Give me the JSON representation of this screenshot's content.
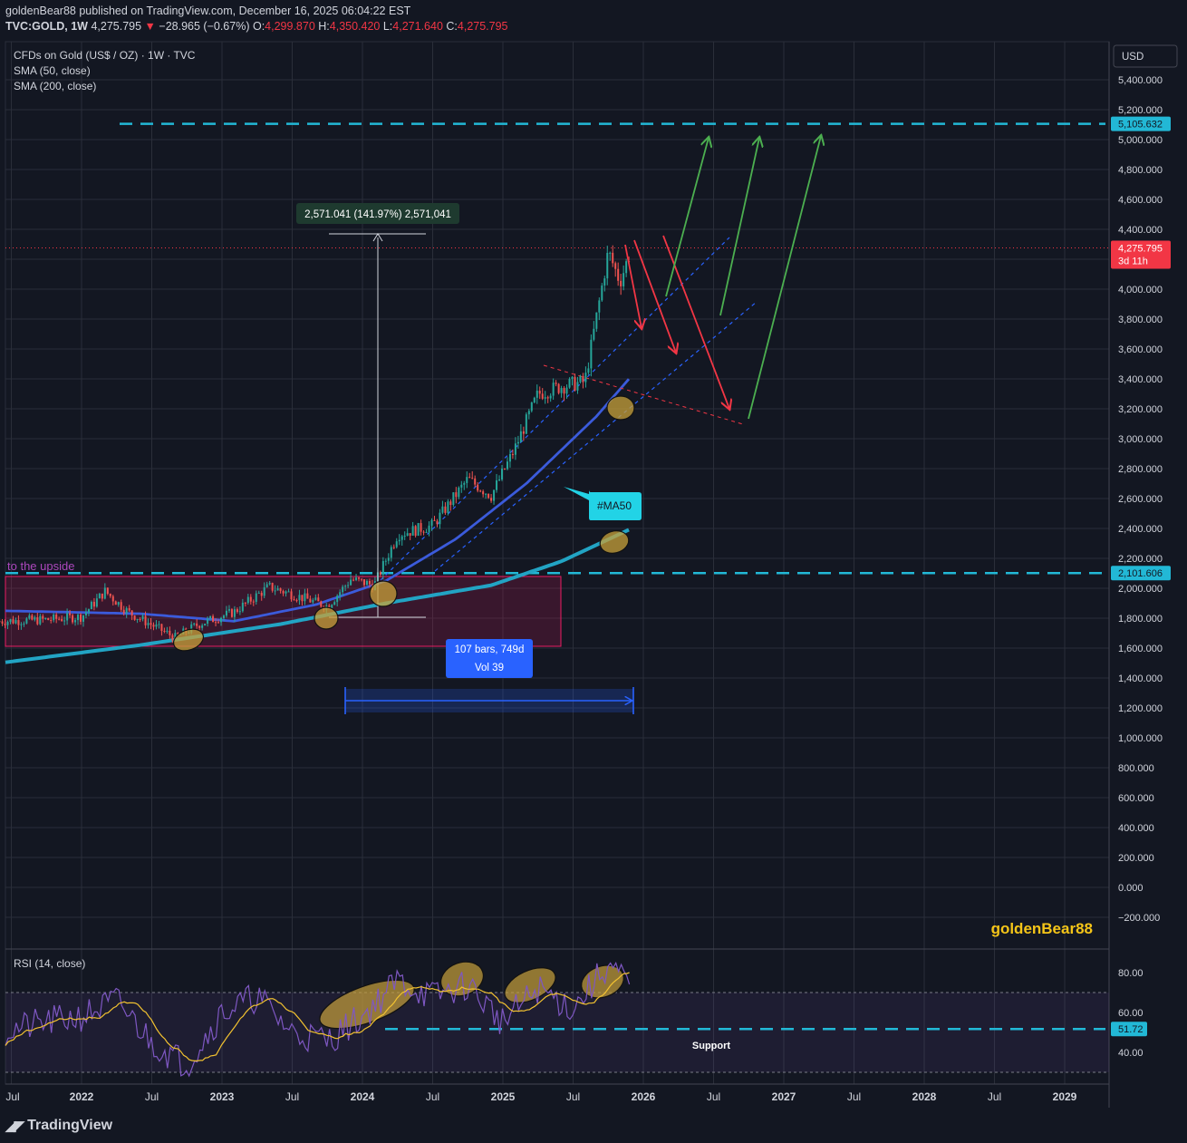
{
  "header": {
    "publisher_line": "goldenBear88 published on TradingView.com, December 16, 2025 06:04:22 EST",
    "symbol_line": "TVC:GOLD, 1W",
    "last": "4,275.795",
    "change": "−28.965 (−0.67%)",
    "o_label": "O:",
    "o": "4,299.870",
    "h_label": "H:",
    "h": "4,350.420",
    "l_label": "L:",
    "l": "4,271.640",
    "c_label": "C:",
    "c": "4,275.795"
  },
  "legend": {
    "instrument": "CFDs on Gold (US$ / OZ) · 1W · TVC",
    "sma50": "SMA (50, close)",
    "sma200": "SMA (200, close)"
  },
  "currency_button": "USD",
  "price_tags": {
    "target": "5,105.632",
    "last_price": "4,275.795",
    "countdown": "3d 11h",
    "support": "2,101.606",
    "rsi_support": "51.72"
  },
  "annotations": {
    "upside_label": "to the upside",
    "measure_label": "2,571.041 (141.97%) 2,571,041",
    "bars_label_1": "107 bars, 749d",
    "bars_label_2": "Vol 39",
    "ma50_callout": "#MA50",
    "watermark": "goldenBear88",
    "rsi_support_label": "Support"
  },
  "rsi_pane": {
    "title": "RSI (14, close)"
  },
  "footer": {
    "brand": "TradingView"
  },
  "colors": {
    "background": "#131722",
    "grid": "#2a2e39",
    "up_candle": "#26a69a",
    "down_candle": "#ef5350",
    "sma50": "#3b5bdb",
    "sma200": "#22a4c4",
    "level_line": "#22b8d6",
    "green_arrow": "#4caf50",
    "red_arrow": "#f23645",
    "ellipse": "#c8a13a",
    "rsi": "#7e57c2",
    "rsi_ma": "#f2c230"
  },
  "chart_data": {
    "type": "candlestick",
    "title": "CFDs on Gold (US$ / OZ) · 1W · TVC",
    "ylabel": "USD",
    "ylim": [
      -300,
      5500
    ],
    "y_ticks": [
      "5,400.000",
      "5,200.000",
      "5,000.000",
      "4,800.000",
      "4,600.000",
      "4,400.000",
      "4,200.000",
      "4,000.000",
      "3,800.000",
      "3,600.000",
      "3,400.000",
      "3,200.000",
      "3,000.000",
      "2,800.000",
      "2,600.000",
      "2,400.000",
      "2,200.000",
      "2,000.000",
      "1,800.000",
      "1,600.000",
      "1,400.000",
      "1,200.000",
      "1,000.000",
      "800.000",
      "600.000",
      "400.000",
      "200.000",
      "0.000",
      "−200.000"
    ],
    "x_ticks": [
      "Jul",
      "2022",
      "Jul",
      "2023",
      "Jul",
      "2024",
      "Jul",
      "2025",
      "Jul",
      "2026",
      "Jul",
      "2027",
      "Jul",
      "2028",
      "Jul",
      "2029"
    ],
    "price_path": {
      "dates": [
        "2021-06",
        "2021-10",
        "2022-01",
        "2022-03",
        "2022-05",
        "2022-09",
        "2022-11",
        "2023-02",
        "2023-05",
        "2023-07",
        "2023-10",
        "2023-12",
        "2024-02",
        "2024-04",
        "2024-07",
        "2024-10",
        "2024-12",
        "2025-02",
        "2025-04",
        "2025-06",
        "2025-08",
        "2025-10",
        "2025-11",
        "2025-12"
      ],
      "close": [
        1780,
        1790,
        1810,
        1980,
        1840,
        1670,
        1760,
        1840,
        2010,
        1960,
        1880,
        2060,
        2020,
        2360,
        2420,
        2730,
        2620,
        2930,
        3300,
        3350,
        3380,
        4250,
        4050,
        4276
      ]
    },
    "series": [
      {
        "name": "SMA (50, close)",
        "dates": [
          "2021-06",
          "2022-06",
          "2023-02",
          "2023-09",
          "2024-03",
          "2024-09",
          "2025-03",
          "2025-09",
          "2025-12"
        ],
        "values": [
          1850,
          1830,
          1780,
          1890,
          2050,
          2330,
          2700,
          3150,
          3420
        ]
      },
      {
        "name": "SMA (200, close)",
        "dates": [
          "2021-06",
          "2022-06",
          "2023-06",
          "2024-03",
          "2024-12",
          "2025-06",
          "2025-12"
        ],
        "values": [
          1500,
          1620,
          1760,
          1900,
          2020,
          2180,
          2400
        ]
      }
    ],
    "levels": [
      {
        "label": "5,105.632",
        "value": 5105.632
      },
      {
        "label": "2,101.606",
        "value": 2101.606
      }
    ],
    "rsi": {
      "title": "RSI (14, close)",
      "ylim": [
        20,
        100
      ],
      "y_ticks": [
        "80.00",
        "60.00",
        "40.00"
      ],
      "support": 51.72,
      "dates": [
        "2021-06",
        "2021-10",
        "2022-01",
        "2022-04",
        "2022-07",
        "2022-10",
        "2023-01",
        "2023-04",
        "2023-07",
        "2023-10",
        "2024-01",
        "2024-04",
        "2024-07",
        "2024-10",
        "2025-01",
        "2025-04",
        "2025-07",
        "2025-10",
        "2025-12"
      ],
      "values": [
        50,
        55,
        58,
        66,
        45,
        34,
        60,
        68,
        50,
        46,
        58,
        76,
        68,
        74,
        55,
        72,
        62,
        84,
        72
      ]
    }
  }
}
